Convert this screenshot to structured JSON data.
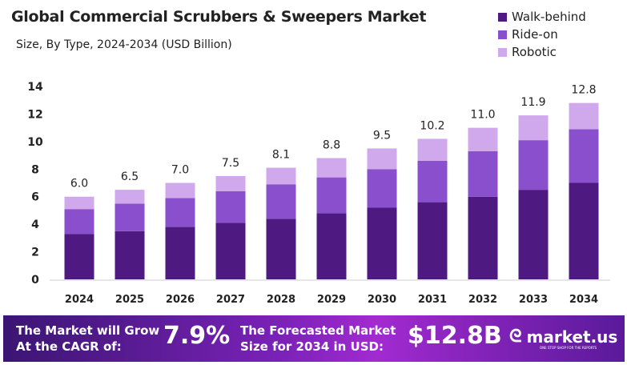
{
  "chart_data": {
    "type": "bar",
    "stacked": true,
    "title": "Global Commercial Scrubbers & Sweepers Market",
    "subtitle": "Size, By Type, 2024-2034 (USD Billion)",
    "categories": [
      "2024",
      "2025",
      "2026",
      "2027",
      "2028",
      "2029",
      "2030",
      "2031",
      "2032",
      "2033",
      "2034"
    ],
    "series": [
      {
        "name": "Walk-behind",
        "color": "#4e1a82",
        "values": [
          3.3,
          3.5,
          3.8,
          4.1,
          4.4,
          4.8,
          5.2,
          5.6,
          6.0,
          6.5,
          7.0
        ]
      },
      {
        "name": "Ride-on",
        "color": "#8a4fcc",
        "values": [
          1.8,
          2.0,
          2.1,
          2.3,
          2.5,
          2.6,
          2.8,
          3.0,
          3.3,
          3.6,
          3.9
        ]
      },
      {
        "name": "Robotic",
        "color": "#d0a8ec",
        "values": [
          0.9,
          1.0,
          1.1,
          1.1,
          1.2,
          1.4,
          1.5,
          1.6,
          1.7,
          1.8,
          1.9
        ]
      }
    ],
    "totals": [
      "6.0",
      "6.5",
      "7.0",
      "7.5",
      "8.1",
      "8.8",
      "9.5",
      "10.2",
      "11.0",
      "11.9",
      "12.8"
    ],
    "yticks": [
      "0",
      "2",
      "4",
      "6",
      "8",
      "10",
      "12",
      "14"
    ],
    "ylim": [
      0,
      14
    ],
    "grid": false,
    "legend": "top-right"
  },
  "banner": {
    "cagr_label": [
      "The Market will Grow",
      "At the CAGR of:"
    ],
    "cagr_value": "7.9%",
    "forecast_label": [
      "The Forecasted Market",
      "Size for 2034 in USD:"
    ],
    "forecast_value": "$12.8B",
    "logo_text": "market.us",
    "logo_tagline": "ONE STOP SHOP FOR THE REPORTS"
  }
}
